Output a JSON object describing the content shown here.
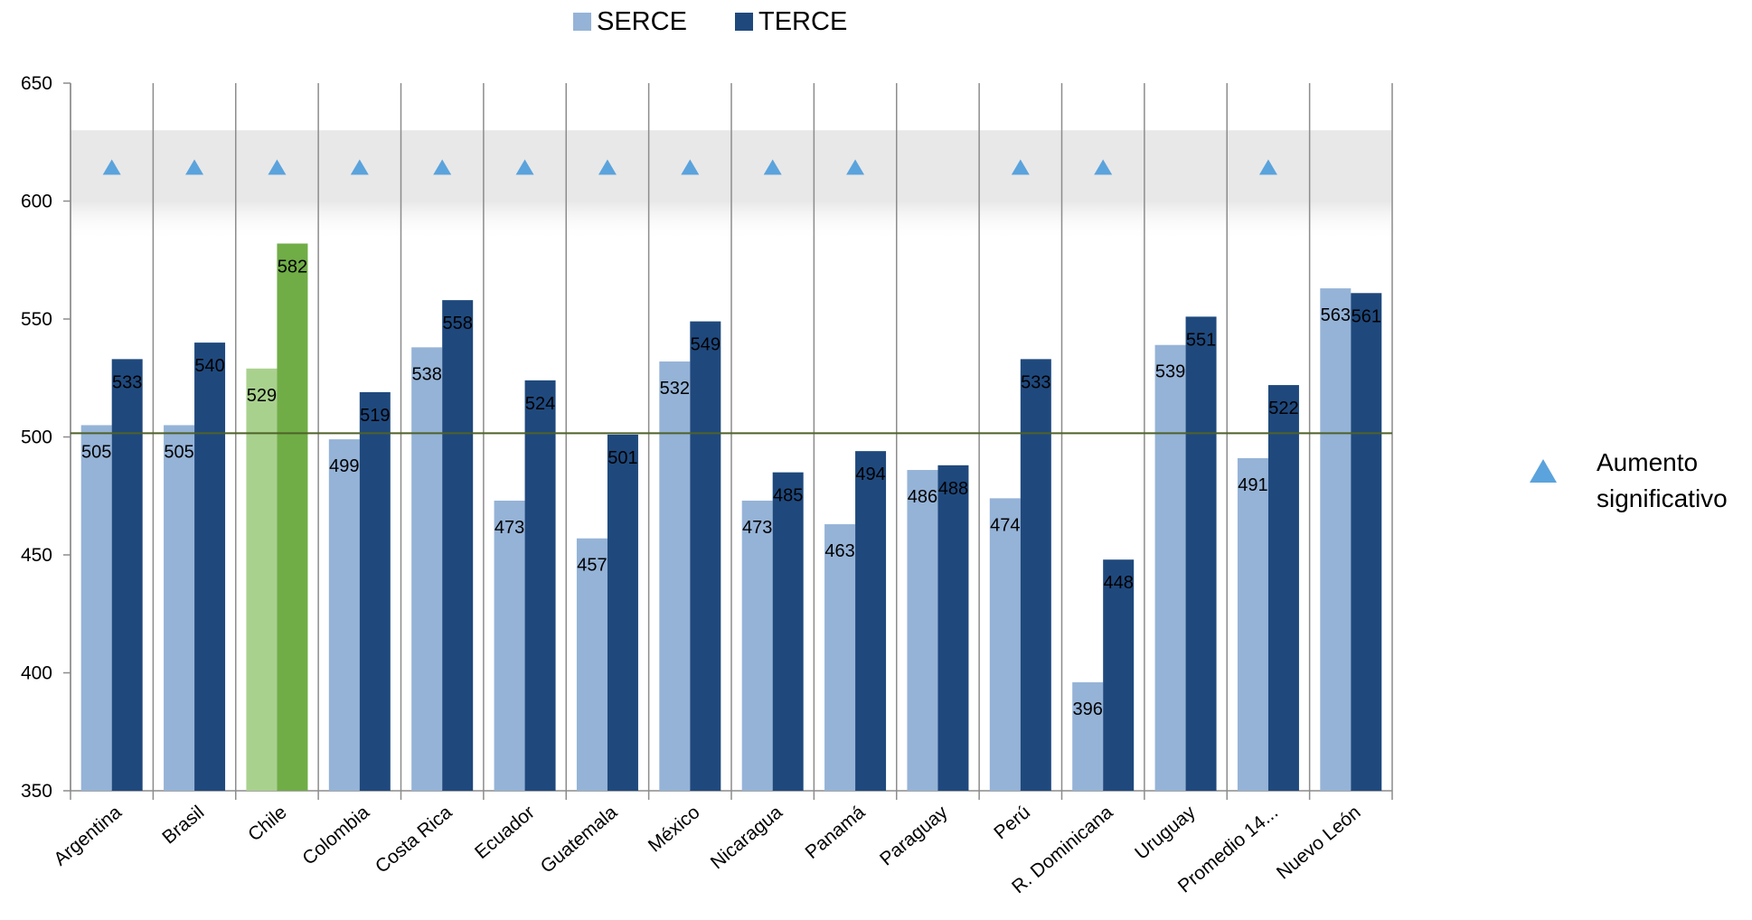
{
  "legend": {
    "series_a": "SERCE",
    "series_b": "TERCE",
    "marker_label_1": "Aumento",
    "marker_label_2": "significativo"
  },
  "colors": {
    "serce": "#95b3d7",
    "terce": "#1f497d",
    "serce_highlight": "#a9d18e",
    "terce_highlight": "#70ad47",
    "triangle": "#5ba3dc",
    "reference_line": "#4f6228",
    "band": "#e8e8e8"
  },
  "chart_data": {
    "type": "bar",
    "ylim": [
      350,
      650
    ],
    "yticks": [
      350,
      400,
      450,
      500,
      550,
      600,
      650
    ],
    "reference_value": 501,
    "categories": [
      "Argentina",
      "Brasil",
      "Chile",
      "Colombia",
      "Costa Rica",
      "Ecuador",
      "Guatemala",
      "México",
      "Nicaragua",
      "Panamá",
      "Paraguay",
      "Perú",
      "R. Dominicana",
      "Uruguay",
      "Promedio 14...",
      "Nuevo León"
    ],
    "series": [
      {
        "name": "SERCE",
        "values": [
          505,
          505,
          529,
          499,
          538,
          473,
          457,
          532,
          473,
          463,
          486,
          474,
          396,
          539,
          491,
          563
        ]
      },
      {
        "name": "TERCE",
        "values": [
          533,
          540,
          582,
          519,
          558,
          524,
          501,
          549,
          485,
          494,
          488,
          533,
          448,
          551,
          522,
          561
        ]
      }
    ],
    "highlight_category": "Chile",
    "significant_increase": [
      true,
      true,
      true,
      true,
      true,
      true,
      true,
      true,
      true,
      true,
      false,
      true,
      true,
      false,
      true,
      false
    ]
  }
}
